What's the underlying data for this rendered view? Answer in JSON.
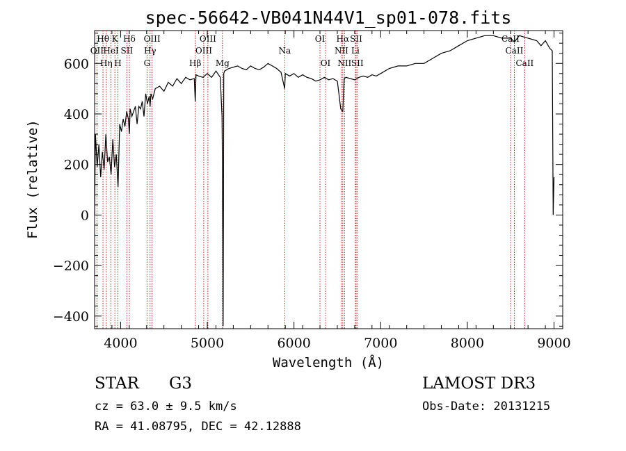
{
  "chart_data": {
    "type": "line",
    "title": "spec-56642-VB041N44V1_sp01-078.fits",
    "xlabel": "Wavelength (Å)",
    "ylabel": "Flux (relative)",
    "xlim": [
      3700,
      9100
    ],
    "ylim": [
      -450,
      730
    ],
    "xticks": [
      4000,
      5000,
      6000,
      7000,
      8000,
      9000
    ],
    "yticks": [
      -400,
      -200,
      0,
      200,
      400,
      600
    ],
    "grid": false,
    "series": [
      {
        "name": "flux",
        "x": [
          3700,
          3710,
          3730,
          3750,
          3770,
          3790,
          3810,
          3830,
          3850,
          3870,
          3890,
          3910,
          3930,
          3950,
          3970,
          3990,
          4010,
          4030,
          4050,
          4070,
          4090,
          4101,
          4110,
          4130,
          4150,
          4170,
          4190,
          4210,
          4230,
          4250,
          4270,
          4290,
          4310,
          4330,
          4340,
          4350,
          4370,
          4400,
          4450,
          4500,
          4550,
          4600,
          4650,
          4700,
          4750,
          4800,
          4850,
          4861,
          4870,
          4900,
          4950,
          5000,
          5050,
          5100,
          5150,
          5170,
          5175,
          5183,
          5190,
          5200,
          5250,
          5300,
          5350,
          5400,
          5450,
          5500,
          5550,
          5600,
          5650,
          5700,
          5750,
          5800,
          5850,
          5893,
          5900,
          5950,
          6000,
          6050,
          6100,
          6150,
          6200,
          6250,
          6300,
          6350,
          6400,
          6450,
          6500,
          6540,
          6563,
          6580,
          6600,
          6650,
          6700,
          6750,
          6800,
          6850,
          6900,
          6950,
          7000,
          7100,
          7200,
          7300,
          7400,
          7500,
          7600,
          7700,
          7800,
          7900,
          8000,
          8100,
          8200,
          8300,
          8400,
          8500,
          8542,
          8600,
          8700,
          8800,
          8850,
          8900,
          8950,
          8980,
          8990,
          9000
        ],
        "values": [
          0,
          320,
          190,
          280,
          150,
          250,
          180,
          320,
          210,
          230,
          160,
          300,
          190,
          240,
          110,
          360,
          330,
          380,
          350,
          410,
          380,
          320,
          420,
          390,
          410,
          430,
          360,
          430,
          420,
          450,
          390,
          480,
          440,
          470,
          430,
          480,
          460,
          500,
          510,
          490,
          525,
          510,
          540,
          520,
          545,
          535,
          540,
          450,
          555,
          550,
          545,
          560,
          545,
          570,
          545,
          390,
          190,
          -440,
          560,
          570,
          580,
          585,
          590,
          580,
          575,
          590,
          580,
          575,
          585,
          600,
          590,
          580,
          565,
          500,
          560,
          550,
          560,
          545,
          555,
          545,
          540,
          530,
          535,
          545,
          535,
          540,
          530,
          420,
          410,
          540,
          545,
          540,
          535,
          545,
          550,
          545,
          555,
          550,
          560,
          580,
          590,
          590,
          600,
          600,
          620,
          640,
          650,
          670,
          690,
          700,
          710,
          710,
          700,
          700,
          685,
          710,
          700,
          690,
          670,
          690,
          660,
          650,
          0,
          150
        ]
      }
    ],
    "spectral_lines": [
      {
        "label": "Hθ",
        "x": 3797,
        "row": 0
      },
      {
        "label": "OII",
        "x": 3727,
        "row": 1
      },
      {
        "label": "Hη",
        "x": 3835,
        "row": 2
      },
      {
        "label": "HeI",
        "x": 3889,
        "row": 1
      },
      {
        "label": "K",
        "x": 3934,
        "row": 0
      },
      {
        "label": "H",
        "x": 3969,
        "row": 2
      },
      {
        "label": "Hδ",
        "x": 4101,
        "row": 0
      },
      {
        "label": "SII",
        "x": 4072,
        "row": 1
      },
      {
        "label": "OIII",
        "x": 4363,
        "row": 0
      },
      {
        "label": "Hγ",
        "x": 4340,
        "row": 1
      },
      {
        "label": "G",
        "x": 4305,
        "row": 2
      },
      {
        "label": "Hβ",
        "x": 4861,
        "row": 2
      },
      {
        "label": "OIII",
        "x": 5007,
        "row": 0
      },
      {
        "label": "OIII",
        "x": 4959,
        "row": 1
      },
      {
        "label": "Mg",
        "x": 5175,
        "row": 2
      },
      {
        "label": "Na",
        "x": 5893,
        "row": 1
      },
      {
        "label": "OI",
        "x": 6300,
        "row": 0
      },
      {
        "label": "OI",
        "x": 6364,
        "row": 2
      },
      {
        "label": "Hα",
        "x": 6563,
        "row": 0
      },
      {
        "label": "NII",
        "x": 6548,
        "row": 1
      },
      {
        "label": "NII",
        "x": 6583,
        "row": 2
      },
      {
        "label": "SII",
        "x": 6717,
        "row": 0
      },
      {
        "label": "Li",
        "x": 6708,
        "row": 1
      },
      {
        "label": "SII",
        "x": 6731,
        "row": 2
      },
      {
        "label": "CaII",
        "x": 8498,
        "row": 0
      },
      {
        "label": "CaII",
        "x": 8542,
        "row": 1
      },
      {
        "label": "CaII",
        "x": 8662,
        "row": 2
      }
    ]
  },
  "info": {
    "object_class": "STAR",
    "subclass": "G3",
    "survey": "LAMOST DR3",
    "cz": "cz = 63.0 ± 9.5 km/s",
    "obs_date": "Obs-Date: 20131215",
    "coords": "RA =  41.08795, DEC =  42.12888"
  },
  "colors": {
    "spectrum": "#000000",
    "line_markers": "#cc0000",
    "background": "#ffffff"
  }
}
